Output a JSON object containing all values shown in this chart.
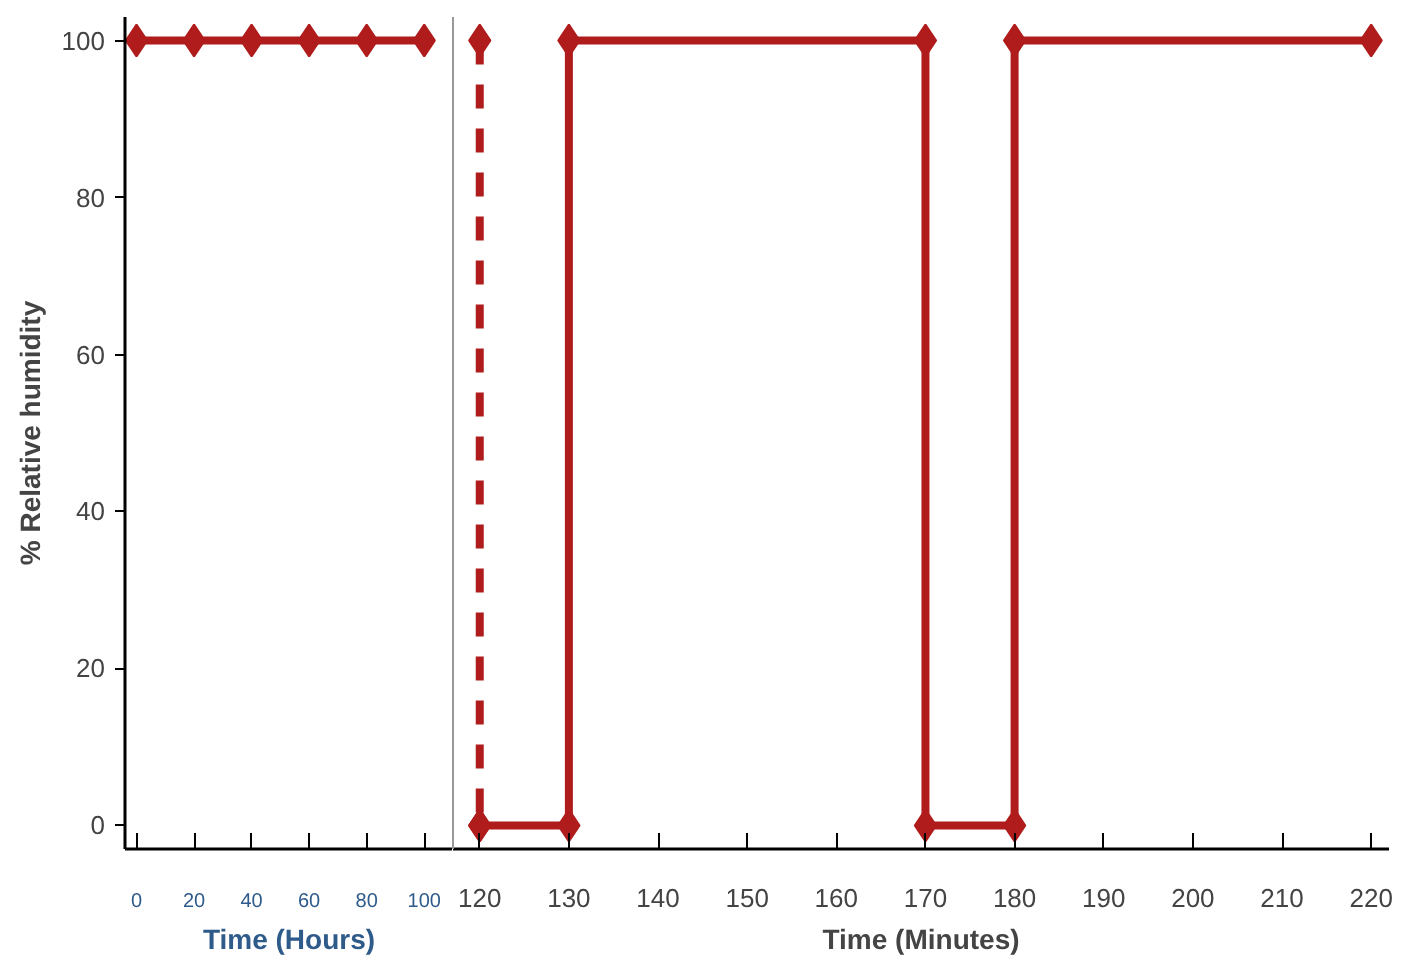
{
  "chart_data": [
    {
      "type": "line",
      "xlabel": "Time (Hours)",
      "ylabel": "% Relative humidity",
      "xlim": [
        -4,
        110
      ],
      "xticks": [
        0,
        20,
        40,
        60,
        80,
        100
      ],
      "ylim": [
        -3,
        103
      ],
      "yticks": [
        0,
        20,
        40,
        60,
        80,
        100
      ],
      "marker": "diamond",
      "line_style": "solid",
      "series": [
        {
          "color": "#b01c1c",
          "x": [
            0,
            20,
            40,
            60,
            80,
            100
          ],
          "values": [
            100,
            100,
            100,
            100,
            100,
            100
          ]
        }
      ]
    },
    {
      "type": "line",
      "xlabel": "Time (Minutes)",
      "xlim": [
        117,
        222
      ],
      "xticks": [
        120,
        130,
        140,
        150,
        160,
        170,
        180,
        190,
        200,
        210,
        220
      ],
      "ylim": [
        -3,
        103
      ],
      "yticks": [
        0,
        20,
        40,
        60,
        80,
        100
      ],
      "tick_labels": "x",
      "marker": "diamond",
      "line_style": "solid",
      "series": [
        {
          "color": "#b01c1c",
          "line_style": "dashed",
          "x": [
            120,
            120
          ],
          "values": [
            100,
            0
          ]
        },
        {
          "color": "#b01c1c",
          "x": [
            120,
            130,
            130,
            170,
            170,
            180,
            180,
            220
          ],
          "values": [
            0,
            0,
            100,
            100,
            0,
            0,
            100,
            100
          ]
        }
      ]
    }
  ]
}
